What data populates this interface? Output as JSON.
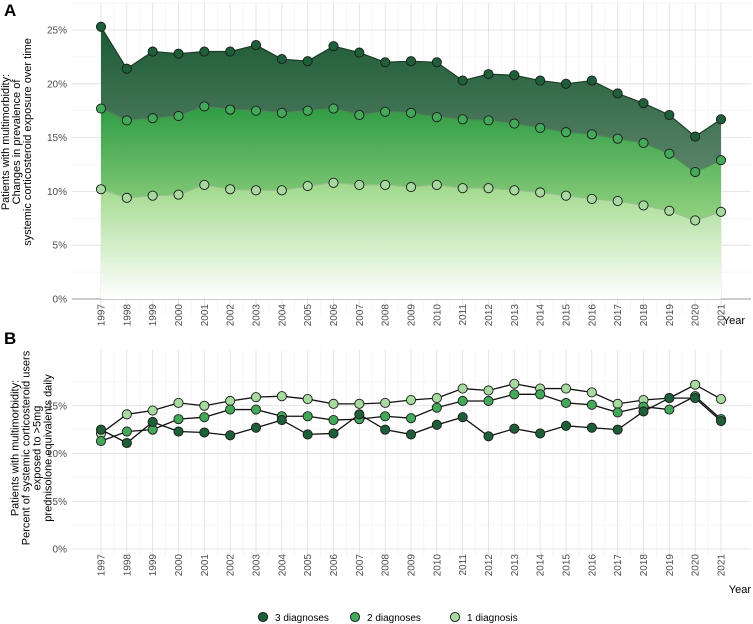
{
  "legend": [
    {
      "label": "3 diagnoses",
      "color": "#1e5e38"
    },
    {
      "label": "2 diagnoses",
      "color": "#44a85a"
    },
    {
      "label": "1 diagnosis",
      "color": "#a8d9a0"
    }
  ],
  "chart_data": [
    {
      "panel": "A",
      "type": "area",
      "title": "",
      "xlabel": "Year",
      "ylabel_lines": [
        "Patients with multimorbidity:",
        "Changes in prevalence of",
        "systemic corticosteroid exposure over time"
      ],
      "ylim": [
        0,
        25
      ],
      "yticks": [
        "0%",
        "5%",
        "10%",
        "15%",
        "20%",
        "25%"
      ],
      "ytick_values": [
        0,
        5,
        10,
        15,
        20,
        25
      ],
      "categories": [
        "1997",
        "1998",
        "1999",
        "2000",
        "2001",
        "2002",
        "2003",
        "2004",
        "2005",
        "2006",
        "2007",
        "2008",
        "2009",
        "2010",
        "2011",
        "2012",
        "2013",
        "2014",
        "2015",
        "2016",
        "2017",
        "2018",
        "2019",
        "2020",
        "2021"
      ],
      "series": [
        {
          "name": "3 diagnoses",
          "values": [
            25.3,
            21.4,
            23.0,
            22.8,
            23.0,
            23.0,
            23.6,
            22.3,
            22.1,
            23.5,
            22.9,
            22.0,
            22.1,
            22.0,
            20.3,
            20.9,
            20.8,
            20.3,
            20.0,
            20.3,
            19.1,
            18.2,
            17.1,
            15.1,
            16.7
          ]
        },
        {
          "name": "2 diagnoses",
          "values": [
            17.7,
            16.6,
            16.8,
            17.0,
            17.9,
            17.6,
            17.5,
            17.3,
            17.5,
            17.7,
            17.1,
            17.4,
            17.3,
            16.9,
            16.7,
            16.6,
            16.3,
            15.9,
            15.5,
            15.3,
            14.9,
            14.5,
            13.5,
            11.8,
            12.9
          ]
        },
        {
          "name": "1 diagnosis",
          "values": [
            10.2,
            9.4,
            9.6,
            9.7,
            10.6,
            10.2,
            10.1,
            10.1,
            10.5,
            10.8,
            10.6,
            10.6,
            10.4,
            10.6,
            10.3,
            10.3,
            10.1,
            9.9,
            9.6,
            9.3,
            9.1,
            8.7,
            8.2,
            7.3,
            8.1
          ]
        }
      ]
    },
    {
      "panel": "B",
      "type": "line",
      "title": "",
      "xlabel": "Year",
      "ylabel_lines": [
        "Patients with multimorbidity:",
        "Percent of systemic corticosteroid users",
        "exposed to >5mg",
        "prednisolone equivalents daily"
      ],
      "ylim": [
        0,
        20
      ],
      "yticks": [
        "0%",
        "5%",
        "10%",
        "15%"
      ],
      "ytick_values": [
        0,
        5,
        10,
        15
      ],
      "categories": [
        "1997",
        "1998",
        "1999",
        "2000",
        "2001",
        "2002",
        "2003",
        "2004",
        "2005",
        "2006",
        "2007",
        "2008",
        "2009",
        "2010",
        "2011",
        "2012",
        "2013",
        "2014",
        "2015",
        "2016",
        "2017",
        "2018",
        "2019",
        "2020",
        "2021"
      ],
      "series": [
        {
          "name": "3 diagnoses",
          "values": [
            12.5,
            11.1,
            13.3,
            12.3,
            12.2,
            11.9,
            12.7,
            13.5,
            12.0,
            12.1,
            14.1,
            12.5,
            12.0,
            13.0,
            13.8,
            11.8,
            12.6,
            12.1,
            12.9,
            12.7,
            12.5,
            14.4,
            15.8,
            15.8,
            13.4
          ]
        },
        {
          "name": "2 diagnoses",
          "values": [
            11.3,
            12.3,
            12.5,
            13.6,
            13.8,
            14.6,
            14.6,
            13.9,
            13.9,
            13.5,
            13.6,
            13.9,
            13.7,
            14.8,
            15.5,
            15.5,
            16.2,
            16.2,
            15.3,
            15.1,
            14.3,
            14.9,
            14.6,
            16.0,
            13.6
          ]
        },
        {
          "name": "1 diagnosis",
          "values": [
            12.1,
            14.1,
            14.5,
            15.3,
            15.0,
            15.5,
            15.9,
            16.0,
            15.7,
            15.2,
            15.2,
            15.3,
            15.6,
            15.8,
            16.8,
            16.6,
            17.3,
            16.8,
            16.8,
            16.4,
            15.2,
            15.6,
            15.8,
            17.2,
            15.7
          ]
        }
      ]
    }
  ]
}
